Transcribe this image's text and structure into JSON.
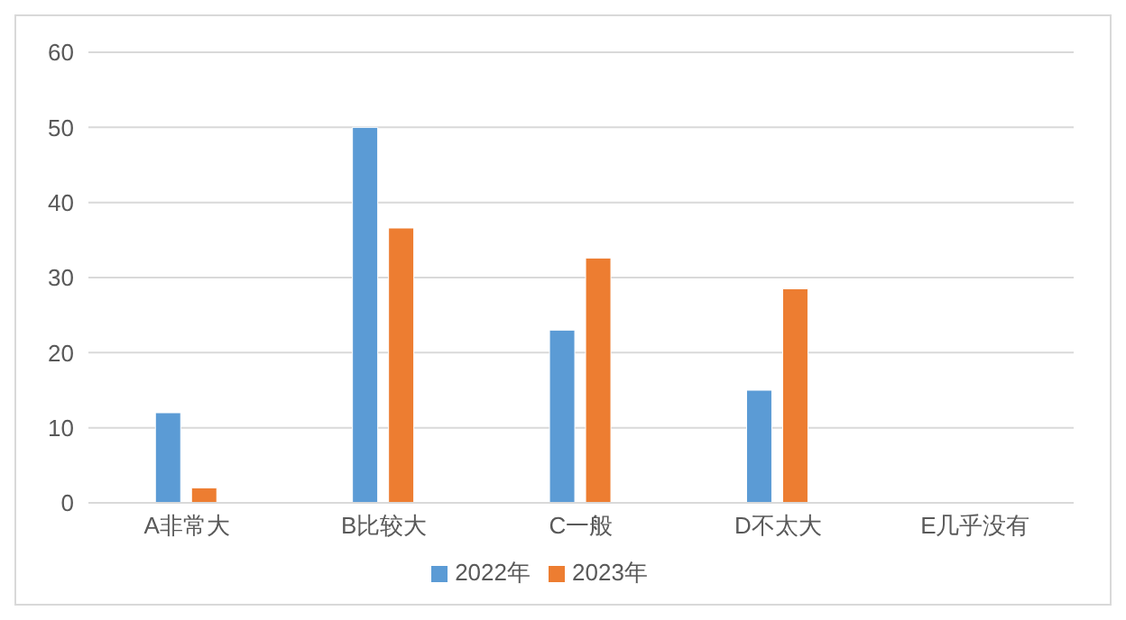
{
  "chart_data": {
    "type": "bar",
    "categories": [
      "A非常大",
      "B比较大",
      "C一般",
      "D不太大",
      "E几乎没有"
    ],
    "series": [
      {
        "name": "2022年",
        "color": "#5b9bd5",
        "values": [
          12,
          50,
          23,
          15,
          0
        ]
      },
      {
        "name": "2023年",
        "color": "#ed7d31",
        "values": [
          2,
          36.6,
          32.6,
          28.5,
          0
        ]
      }
    ],
    "ylim": [
      0,
      60
    ],
    "yticks": [
      0,
      10,
      20,
      30,
      40,
      50,
      60
    ],
    "grid": "y",
    "legend": "bottom"
  }
}
